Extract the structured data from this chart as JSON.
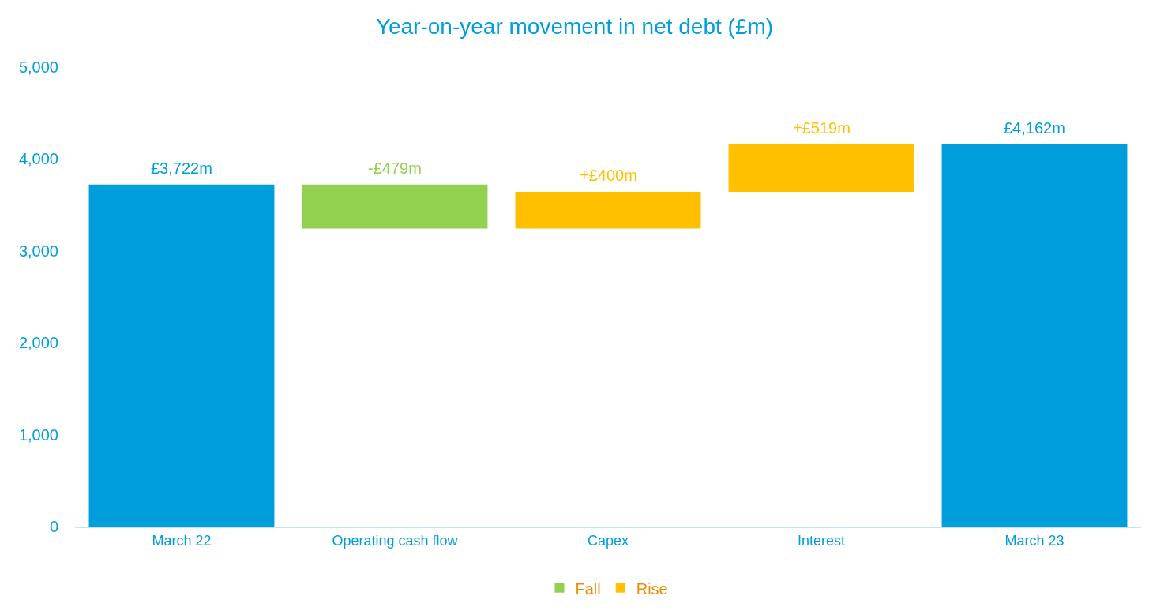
{
  "chart_data": {
    "type": "bar",
    "title": "Year-on-year movement in net debt (£m)",
    "categories": [
      "March 22",
      "Operating cash flow",
      "Capex",
      "Interest",
      "March 23"
    ],
    "series": [
      {
        "color": "#009fdb",
        "values": [
          3722,
          null,
          null,
          null,
          4162
        ],
        "base": [
          0,
          null,
          null,
          null,
          0
        ],
        "value_labels": [
          "£3,722m",
          null,
          null,
          null,
          "£4,162m"
        ]
      },
      {
        "name": "Fall",
        "color": "#92d050",
        "values": [
          null,
          -479,
          null,
          null,
          null
        ],
        "base": [
          null,
          3722,
          null,
          null,
          null
        ],
        "value_labels": [
          null,
          "-£479m",
          null,
          null,
          null
        ]
      },
      {
        "name": "Rise",
        "color": "#ffc000",
        "values": [
          null,
          null,
          400,
          519,
          null
        ],
        "base": [
          null,
          null,
          3243,
          3643,
          null
        ],
        "value_labels": [
          null,
          null,
          "+£400m",
          "+£519m",
          null
        ]
      }
    ],
    "ylim": [
      0,
      5000
    ],
    "yticks": [
      0,
      {
        "value": 1000,
        "label": "1,000"
      },
      {
        "value": 2000,
        "label": "2,000"
      },
      {
        "value": 3000,
        "label": "3,000"
      },
      {
        "value": 4000,
        "label": "4,000"
      },
      {
        "value": 5000,
        "label": "5,000"
      }
    ],
    "legend": "bottom"
  }
}
